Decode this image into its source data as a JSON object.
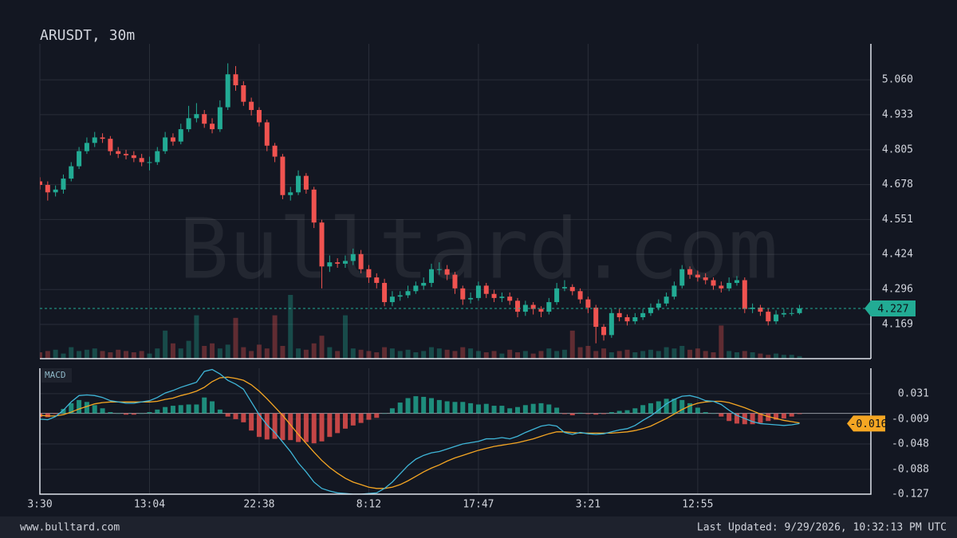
{
  "chart_data": [
    {
      "type": "candlestick",
      "title": "ARUSDT, 30m",
      "watermark": "Bulltard.com",
      "footer_left": "www.bulltard.com",
      "footer_right": "Last Updated: 9/29/2026, 10:32:13 PM UTC",
      "categories": [
        "3:30",
        null,
        null,
        null,
        null,
        null,
        null,
        null,
        null,
        null,
        null,
        null,
        null,
        null,
        "13:04",
        null,
        null,
        null,
        null,
        null,
        null,
        null,
        null,
        null,
        null,
        null,
        null,
        null,
        "22:38",
        null,
        null,
        null,
        null,
        null,
        null,
        null,
        null,
        null,
        null,
        null,
        null,
        null,
        "8:12",
        null,
        null,
        null,
        null,
        null,
        null,
        null,
        null,
        null,
        null,
        null,
        null,
        null,
        "17:47",
        null,
        null,
        null,
        null,
        null,
        null,
        null,
        null,
        null,
        null,
        null,
        null,
        null,
        "3:21",
        null,
        null,
        null,
        null,
        null,
        null,
        null,
        null,
        null,
        null,
        null,
        null,
        null,
        "12:55",
        null,
        null,
        null,
        null,
        null,
        null,
        null,
        null,
        null,
        null,
        null,
        null,
        null
      ],
      "open": [
        4.69,
        4.677,
        4.65,
        4.66,
        4.7,
        4.745,
        4.8,
        4.83,
        4.85,
        4.845,
        4.8,
        4.79,
        4.785,
        4.775,
        4.76,
        4.76,
        4.8,
        4.85,
        4.835,
        4.88,
        4.92,
        4.935,
        4.9,
        4.88,
        4.96,
        5.08,
        5.04,
        4.98,
        4.95,
        4.905,
        4.82,
        4.78,
        4.64,
        4.65,
        4.71,
        4.66,
        4.54,
        4.38,
        4.395,
        4.39,
        4.4,
        4.425,
        4.37,
        4.34,
        4.32,
        4.25,
        4.27,
        4.275,
        4.29,
        4.31,
        4.32,
        4.37,
        4.37,
        4.35,
        4.3,
        4.26,
        4.265,
        4.31,
        4.28,
        4.265,
        4.27,
        4.255,
        4.215,
        4.24,
        4.225,
        4.215,
        4.25,
        4.3,
        4.305,
        4.29,
        4.26,
        4.23,
        4.16,
        4.13,
        4.21,
        4.195,
        4.18,
        4.195,
        4.21,
        4.23,
        4.245,
        4.27,
        4.31,
        4.37,
        4.35,
        4.34,
        4.33,
        4.31,
        4.3,
        4.32,
        4.33,
        4.225,
        4.23,
        4.215,
        4.18,
        4.205,
        4.21,
        4.21
      ],
      "high": [
        4.705,
        4.69,
        4.675,
        4.715,
        4.76,
        4.815,
        4.85,
        4.87,
        4.865,
        4.855,
        4.815,
        4.805,
        4.8,
        4.79,
        4.78,
        4.815,
        4.87,
        4.865,
        4.9,
        4.965,
        4.975,
        4.95,
        4.92,
        4.985,
        5.12,
        5.11,
        5.055,
        4.995,
        4.96,
        4.915,
        4.83,
        4.79,
        4.67,
        4.73,
        4.72,
        4.67,
        4.55,
        4.42,
        4.41,
        4.42,
        4.445,
        4.44,
        4.385,
        4.355,
        4.335,
        4.29,
        4.29,
        4.31,
        4.325,
        4.34,
        4.39,
        4.395,
        4.385,
        4.36,
        4.31,
        4.285,
        4.325,
        4.32,
        4.295,
        4.285,
        4.285,
        4.265,
        4.255,
        4.25,
        4.235,
        4.265,
        4.32,
        4.33,
        4.315,
        4.3,
        4.27,
        4.24,
        4.17,
        4.225,
        4.225,
        4.205,
        4.21,
        4.225,
        4.245,
        4.26,
        4.285,
        4.325,
        4.385,
        4.38,
        4.365,
        4.355,
        4.34,
        4.325,
        4.34,
        4.345,
        4.34,
        4.245,
        4.24,
        4.225,
        4.22,
        4.225,
        4.225,
        4.24
      ],
      "low": [
        4.66,
        4.62,
        4.635,
        4.645,
        4.69,
        4.735,
        4.79,
        4.815,
        4.83,
        4.785,
        4.775,
        4.77,
        4.76,
        4.745,
        4.73,
        4.75,
        4.79,
        4.82,
        4.825,
        4.87,
        4.905,
        4.885,
        4.865,
        4.87,
        4.95,
        5.02,
        4.965,
        4.93,
        4.89,
        4.8,
        4.76,
        4.625,
        4.62,
        4.64,
        4.645,
        4.52,
        4.3,
        4.36,
        4.375,
        4.375,
        4.385,
        4.355,
        4.32,
        4.3,
        4.235,
        4.235,
        4.255,
        4.265,
        4.28,
        4.295,
        4.305,
        4.35,
        4.33,
        4.28,
        4.24,
        4.245,
        4.255,
        4.265,
        4.25,
        4.25,
        4.24,
        4.195,
        4.2,
        4.205,
        4.195,
        4.205,
        4.24,
        4.29,
        4.275,
        4.245,
        4.21,
        4.1,
        4.11,
        4.12,
        4.18,
        4.165,
        4.17,
        4.185,
        4.2,
        4.22,
        4.235,
        4.26,
        4.3,
        4.335,
        4.325,
        4.315,
        4.295,
        4.285,
        4.29,
        4.31,
        4.21,
        4.21,
        4.2,
        4.165,
        4.17,
        4.195,
        4.2,
        4.205
      ],
      "close": [
        4.677,
        4.65,
        4.66,
        4.7,
        4.745,
        4.8,
        4.83,
        4.85,
        4.845,
        4.8,
        4.79,
        4.785,
        4.775,
        4.76,
        4.76,
        4.8,
        4.85,
        4.835,
        4.88,
        4.92,
        4.935,
        4.9,
        4.88,
        4.96,
        5.08,
        5.04,
        4.98,
        4.95,
        4.905,
        4.82,
        4.78,
        4.64,
        4.65,
        4.71,
        4.66,
        4.54,
        4.38,
        4.395,
        4.39,
        4.4,
        4.425,
        4.37,
        4.34,
        4.32,
        4.25,
        4.27,
        4.275,
        4.29,
        4.31,
        4.32,
        4.37,
        4.37,
        4.35,
        4.3,
        4.26,
        4.265,
        4.31,
        4.28,
        4.265,
        4.27,
        4.255,
        4.215,
        4.24,
        4.225,
        4.215,
        4.25,
        4.3,
        4.305,
        4.29,
        4.26,
        4.23,
        4.16,
        4.13,
        4.21,
        4.195,
        4.18,
        4.195,
        4.21,
        4.23,
        4.245,
        4.27,
        4.31,
        4.37,
        4.35,
        4.34,
        4.33,
        4.31,
        4.3,
        4.32,
        4.33,
        4.225,
        4.23,
        4.215,
        4.18,
        4.205,
        4.21,
        4.21,
        4.227
      ],
      "volume": [
        25,
        30,
        35,
        20,
        45,
        30,
        35,
        40,
        30,
        25,
        35,
        30,
        25,
        30,
        20,
        40,
        110,
        60,
        40,
        70,
        170,
        50,
        60,
        40,
        55,
        160,
        45,
        30,
        55,
        40,
        170,
        50,
        250,
        40,
        35,
        60,
        90,
        45,
        30,
        170,
        40,
        35,
        30,
        25,
        45,
        40,
        30,
        35,
        25,
        30,
        45,
        40,
        35,
        30,
        45,
        40,
        30,
        25,
        30,
        20,
        35,
        25,
        30,
        20,
        30,
        40,
        30,
        35,
        110,
        45,
        50,
        30,
        40,
        25,
        30,
        35,
        25,
        30,
        35,
        30,
        45,
        40,
        50,
        35,
        40,
        30,
        25,
        130,
        30,
        25,
        30,
        25,
        20,
        15,
        20,
        15,
        15,
        10
      ],
      "ylim": [
        4.044,
        5.191
      ],
      "yticks": [
        4.169,
        4.296,
        4.424,
        4.551,
        4.678,
        4.805,
        4.933,
        {
          "value": 5.06,
          "label": "5.060"
        }
      ],
      "last_price": 4.227,
      "up_color": "#22ab94",
      "down_color": "#f05350",
      "grid": true
    },
    {
      "type": "macd",
      "label": "MACD",
      "macd": [
        -0.009,
        -0.01,
        -0.005,
        0.005,
        0.018,
        0.028,
        0.029,
        0.028,
        0.025,
        0.02,
        0.018,
        0.016,
        0.016,
        0.018,
        0.02,
        0.025,
        0.032,
        0.036,
        0.041,
        0.045,
        0.049,
        0.066,
        0.069,
        0.062,
        0.052,
        0.046,
        0.038,
        0.018,
        -0.002,
        -0.018,
        -0.03,
        -0.045,
        -0.06,
        -0.078,
        -0.092,
        -0.108,
        -0.118,
        -0.122,
        -0.125,
        -0.126,
        -0.127,
        -0.127,
        -0.126,
        -0.125,
        -0.118,
        -0.108,
        -0.095,
        -0.082,
        -0.072,
        -0.066,
        -0.062,
        -0.06,
        -0.056,
        -0.052,
        -0.048,
        -0.046,
        -0.044,
        -0.04,
        -0.04,
        -0.038,
        -0.04,
        -0.036,
        -0.03,
        -0.025,
        -0.02,
        -0.018,
        -0.02,
        -0.03,
        -0.033,
        -0.03,
        -0.032,
        -0.033,
        -0.032,
        -0.029,
        -0.026,
        -0.024,
        -0.019,
        -0.011,
        -0.004,
        0.005,
        0.015,
        0.022,
        0.027,
        0.028,
        0.025,
        0.02,
        0.019,
        0.014,
        0.005,
        -0.003,
        -0.008,
        -0.013,
        -0.016,
        -0.017,
        -0.018,
        -0.019,
        -0.018,
        -0.016
      ],
      "signal": [
        -0.003,
        -0.004,
        -0.004,
        -0.002,
        0.002,
        0.007,
        0.011,
        0.015,
        0.017,
        0.018,
        0.018,
        0.018,
        0.018,
        0.018,
        0.018,
        0.019,
        0.022,
        0.024,
        0.028,
        0.031,
        0.035,
        0.041,
        0.05,
        0.056,
        0.057,
        0.055,
        0.052,
        0.045,
        0.035,
        0.023,
        0.01,
        -0.003,
        -0.018,
        -0.033,
        -0.047,
        -0.061,
        -0.074,
        -0.085,
        -0.094,
        -0.102,
        -0.108,
        -0.112,
        -0.116,
        -0.118,
        -0.118,
        -0.116,
        -0.112,
        -0.106,
        -0.099,
        -0.092,
        -0.086,
        -0.081,
        -0.075,
        -0.07,
        -0.066,
        -0.062,
        -0.058,
        -0.055,
        -0.052,
        -0.05,
        -0.048,
        -0.046,
        -0.043,
        -0.04,
        -0.036,
        -0.032,
        -0.029,
        -0.029,
        -0.03,
        -0.031,
        -0.031,
        -0.031,
        -0.031,
        -0.031,
        -0.03,
        -0.029,
        -0.027,
        -0.024,
        -0.02,
        -0.014,
        -0.008,
        -0.001,
        0.006,
        0.012,
        0.016,
        0.018,
        0.019,
        0.019,
        0.017,
        0.013,
        0.009,
        0.004,
        -0.001,
        -0.005,
        -0.008,
        -0.011,
        -0.013,
        -0.015
      ],
      "histogram": [
        -0.006,
        -0.006,
        -0.001,
        0.007,
        0.016,
        0.021,
        0.018,
        0.013,
        0.008,
        0.002,
        0.0,
        -0.002,
        -0.002,
        0.0,
        0.002,
        0.006,
        0.01,
        0.012,
        0.013,
        0.014,
        0.014,
        0.025,
        0.019,
        0.006,
        -0.005,
        -0.009,
        -0.014,
        -0.027,
        -0.037,
        -0.041,
        -0.04,
        -0.042,
        -0.042,
        -0.045,
        -0.045,
        -0.047,
        -0.044,
        -0.037,
        -0.031,
        -0.024,
        -0.019,
        -0.015,
        -0.01,
        -0.007,
        0.0,
        0.008,
        0.017,
        0.024,
        0.027,
        0.026,
        0.024,
        0.021,
        0.019,
        0.018,
        0.018,
        0.016,
        0.014,
        0.015,
        0.012,
        0.012,
        0.008,
        0.01,
        0.013,
        0.015,
        0.016,
        0.014,
        0.009,
        -0.001,
        -0.003,
        0.001,
        -0.001,
        -0.002,
        -0.001,
        0.002,
        0.004,
        0.005,
        0.008,
        0.013,
        0.016,
        0.019,
        0.023,
        0.023,
        0.021,
        0.016,
        0.009,
        0.002,
        0.0,
        -0.005,
        -0.012,
        -0.016,
        -0.017,
        -0.017,
        -0.015,
        -0.012,
        -0.01,
        -0.008,
        -0.005,
        -0.001
      ],
      "macd_color": "#3fb6d8",
      "signal_color": "#f5a623",
      "up_color": "#22ab94",
      "down_color": "#f05350",
      "ylim": [
        -0.127,
        0.071
      ],
      "yticks": [
        0.031,
        -0.009,
        -0.048,
        -0.088,
        -0.127
      ],
      "last_value": -0.016,
      "grid": true
    }
  ]
}
